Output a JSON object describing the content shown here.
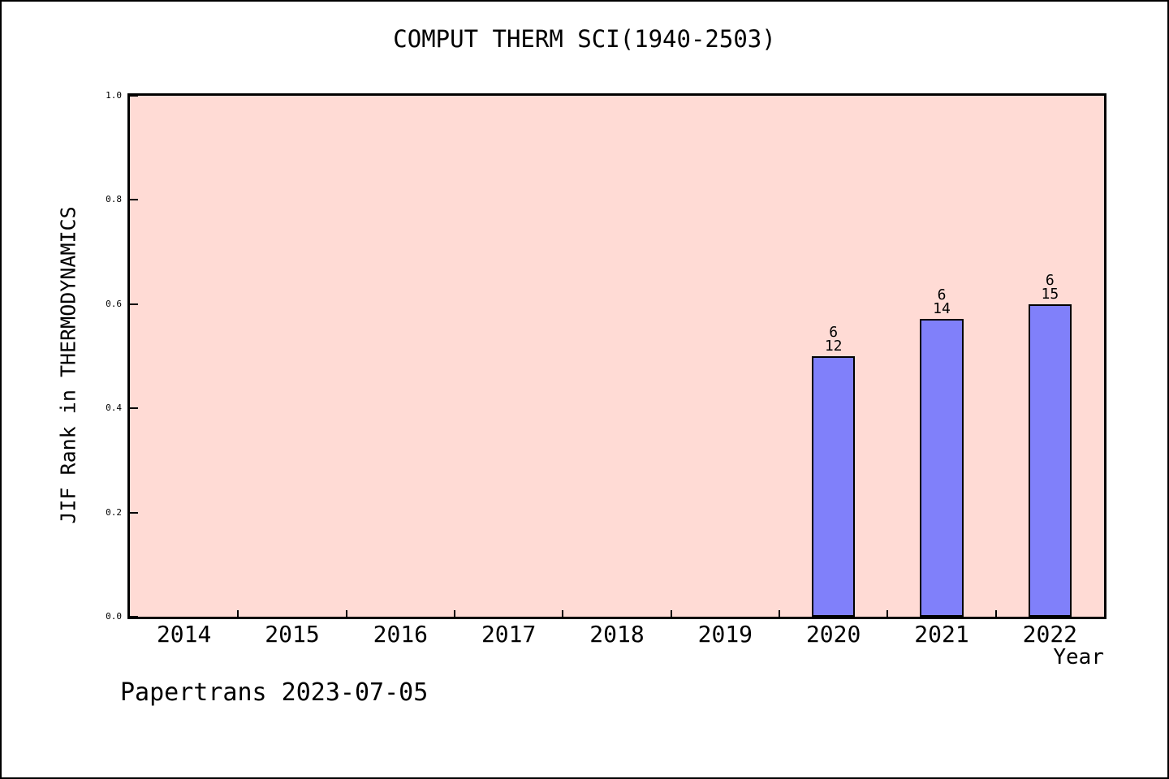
{
  "footer": "Papertrans 2023-07-05",
  "chart_data": {
    "type": "bar",
    "title": "COMPUT THERM SCI(1940-2503)",
    "xlabel": "Year",
    "ylabel": "JIF Rank in THERMODYNAMICS",
    "xlim": [
      2013.5,
      2022.5
    ],
    "ylim": [
      0,
      1
    ],
    "grid": false,
    "legend": null,
    "tick_direction": "in",
    "x_ticks": [
      {
        "value": 2014,
        "label": "2014"
      },
      {
        "value": 2015,
        "label": "2015"
      },
      {
        "value": 2016,
        "label": "2016"
      },
      {
        "value": 2017,
        "label": "2017"
      },
      {
        "value": 2018,
        "label": "2018"
      },
      {
        "value": 2019,
        "label": "2019"
      },
      {
        "value": 2020,
        "label": "2020"
      },
      {
        "value": 2021,
        "label": "2021"
      },
      {
        "value": 2022,
        "label": "2022"
      }
    ],
    "y_ticks": [
      {
        "value": 0.0,
        "label": "0.0"
      },
      {
        "value": 0.2,
        "label": "0.2"
      },
      {
        "value": 0.4,
        "label": "0.4"
      },
      {
        "value": 0.6,
        "label": "0.6"
      },
      {
        "value": 0.8,
        "label": "0.8"
      },
      {
        "value": 1.0,
        "label": "1.0"
      }
    ],
    "bar_width": 0.4,
    "bars": [
      {
        "x": 2020,
        "value": 0.5,
        "annotation": {
          "numerator": "6",
          "denominator": "12"
        }
      },
      {
        "x": 2021,
        "value": 0.5714,
        "annotation": {
          "numerator": "6",
          "denominator": "14"
        }
      },
      {
        "x": 2022,
        "value": 0.6,
        "annotation": {
          "numerator": "6",
          "denominator": "15"
        }
      }
    ],
    "colors": {
      "plot_background": "#ffdbd5",
      "bar_fill": "#8080fa",
      "bar_edge": "#000000",
      "text": "#000000"
    }
  }
}
